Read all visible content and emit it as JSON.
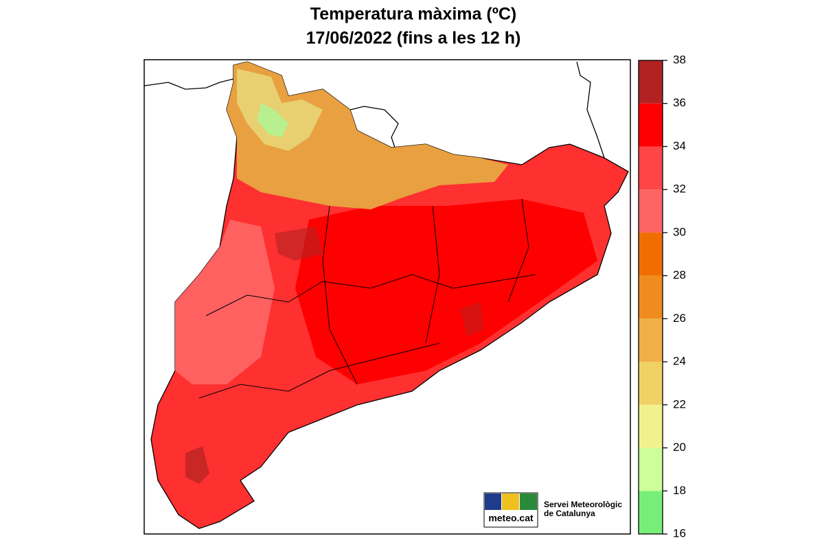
{
  "map": {
    "title": [
      "Temperatura màxima (ºC)",
      "17/06/2022 (fins a les 12 h)"
    ],
    "colorbar": {
      "ticks": [
        16,
        18,
        20,
        22,
        24,
        26,
        28,
        30,
        32,
        34,
        36,
        38
      ],
      "lim": [
        16,
        38
      ],
      "colors": [
        "#77ee77",
        "#ccff99",
        "#f2f28c",
        "#f0d264",
        "#f0b046",
        "#f08c1e",
        "#f06e00",
        "#ff6464",
        "#ff4646",
        "#ff0000",
        "#b22222"
      ]
    },
    "logo": {
      "brand": "meteo.cat",
      "org": [
        "Servei Meteorològic",
        "de Catalunya"
      ]
    }
  }
}
